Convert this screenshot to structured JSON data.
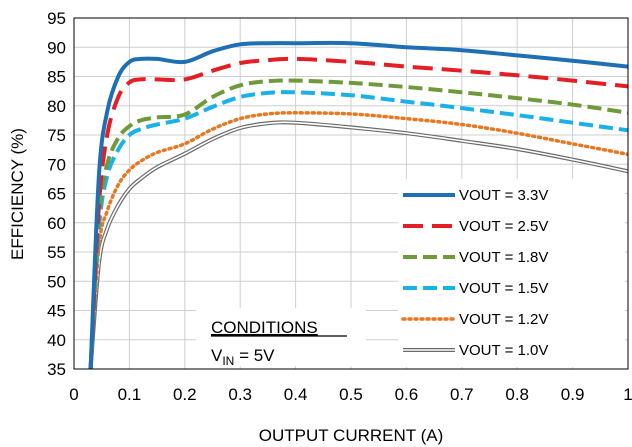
{
  "chart_data": {
    "type": "line",
    "xlabel": "OUTPUT CURRENT (A)",
    "ylabel": "EFFICIENCY (%)",
    "xlim": [
      0,
      1
    ],
    "ylim": [
      35,
      95
    ],
    "xticks": [
      "0",
      "0.1",
      "0.2",
      "0.3",
      "0.4",
      "0.5",
      "0.6",
      "0.7",
      "0.8",
      "0.9",
      "1"
    ],
    "yticks": [
      "35",
      "40",
      "45",
      "50",
      "55",
      "60",
      "65",
      "70",
      "75",
      "80",
      "85",
      "90",
      "95"
    ],
    "grid": true,
    "legend_position": "right",
    "conditions": {
      "heading": "CONDITIONS",
      "vin_symbol": "V",
      "vin_sub": "IN",
      "vin_value": " = 5V"
    },
    "series": [
      {
        "name": "VOUT = 3.3V",
        "color": "#1f6fb5",
        "style": "solid",
        "x": [
          0.03,
          0.045,
          0.06,
          0.08,
          0.1,
          0.12,
          0.15,
          0.2,
          0.25,
          0.3,
          0.35,
          0.4,
          0.5,
          0.6,
          0.7,
          0.8,
          0.9,
          1.0
        ],
        "y": [
          35,
          68,
          79,
          85,
          87.5,
          88,
          88,
          87.5,
          89.3,
          90.5,
          90.7,
          90.7,
          90.7,
          90,
          89.5,
          88.6,
          87.7,
          86.7
        ]
      },
      {
        "name": "VOUT = 2.5V",
        "color": "#e31e24",
        "style": "dash",
        "x": [
          0.03,
          0.045,
          0.06,
          0.08,
          0.1,
          0.12,
          0.15,
          0.2,
          0.25,
          0.3,
          0.35,
          0.4,
          0.5,
          0.6,
          0.7,
          0.8,
          0.9,
          1.0
        ],
        "y": [
          35,
          63,
          75,
          81.5,
          84,
          84.5,
          84.5,
          84.5,
          86,
          87.3,
          87.8,
          88,
          87.5,
          86.7,
          86,
          85.2,
          84.3,
          83.3
        ]
      },
      {
        "name": "VOUT = 1.8V",
        "color": "#6e9a3a",
        "style": "dash",
        "x": [
          0.03,
          0.045,
          0.06,
          0.08,
          0.1,
          0.12,
          0.15,
          0.2,
          0.25,
          0.3,
          0.35,
          0.4,
          0.5,
          0.6,
          0.7,
          0.8,
          0.9,
          1.0
        ],
        "y": [
          35,
          61,
          70,
          74.5,
          76.5,
          77.5,
          78,
          78.5,
          81.5,
          83.5,
          84.2,
          84.3,
          83.9,
          83.2,
          82.3,
          81.3,
          80.2,
          78.8
        ]
      },
      {
        "name": "VOUT = 1.5V",
        "color": "#1ab0e8",
        "style": "dash",
        "x": [
          0.03,
          0.045,
          0.06,
          0.08,
          0.1,
          0.12,
          0.15,
          0.2,
          0.25,
          0.3,
          0.35,
          0.4,
          0.5,
          0.6,
          0.7,
          0.8,
          0.9,
          1.0
        ],
        "y": [
          35,
          59,
          68,
          72.5,
          75,
          76,
          76.8,
          77.8,
          79.8,
          81.5,
          82.2,
          82.3,
          81.8,
          80.7,
          79.6,
          78.4,
          77.1,
          75.8
        ]
      },
      {
        "name": "VOUT = 1.2V",
        "color": "#e87722",
        "style": "dot",
        "x": [
          0.03,
          0.045,
          0.06,
          0.08,
          0.1,
          0.12,
          0.15,
          0.2,
          0.25,
          0.3,
          0.35,
          0.4,
          0.5,
          0.6,
          0.7,
          0.8,
          0.9,
          1.0
        ],
        "y": [
          35,
          56,
          62,
          66.5,
          69,
          70.5,
          72,
          73.5,
          76,
          77.8,
          78.6,
          78.8,
          78.6,
          77.8,
          76.8,
          75.3,
          73.5,
          71.7
        ]
      },
      {
        "name": "VOUT = 1.0V",
        "color": "#6b6b6b",
        "style": "double",
        "x": [
          0.03,
          0.045,
          0.06,
          0.08,
          0.1,
          0.12,
          0.15,
          0.2,
          0.25,
          0.3,
          0.35,
          0.4,
          0.5,
          0.6,
          0.7,
          0.8,
          0.9,
          1.0
        ],
        "y": [
          35,
          53,
          59,
          63,
          65.8,
          67.5,
          69.5,
          71.8,
          74.3,
          76.2,
          77,
          77.1,
          76.3,
          75.3,
          74,
          72.6,
          70.8,
          68.8
        ]
      }
    ]
  }
}
